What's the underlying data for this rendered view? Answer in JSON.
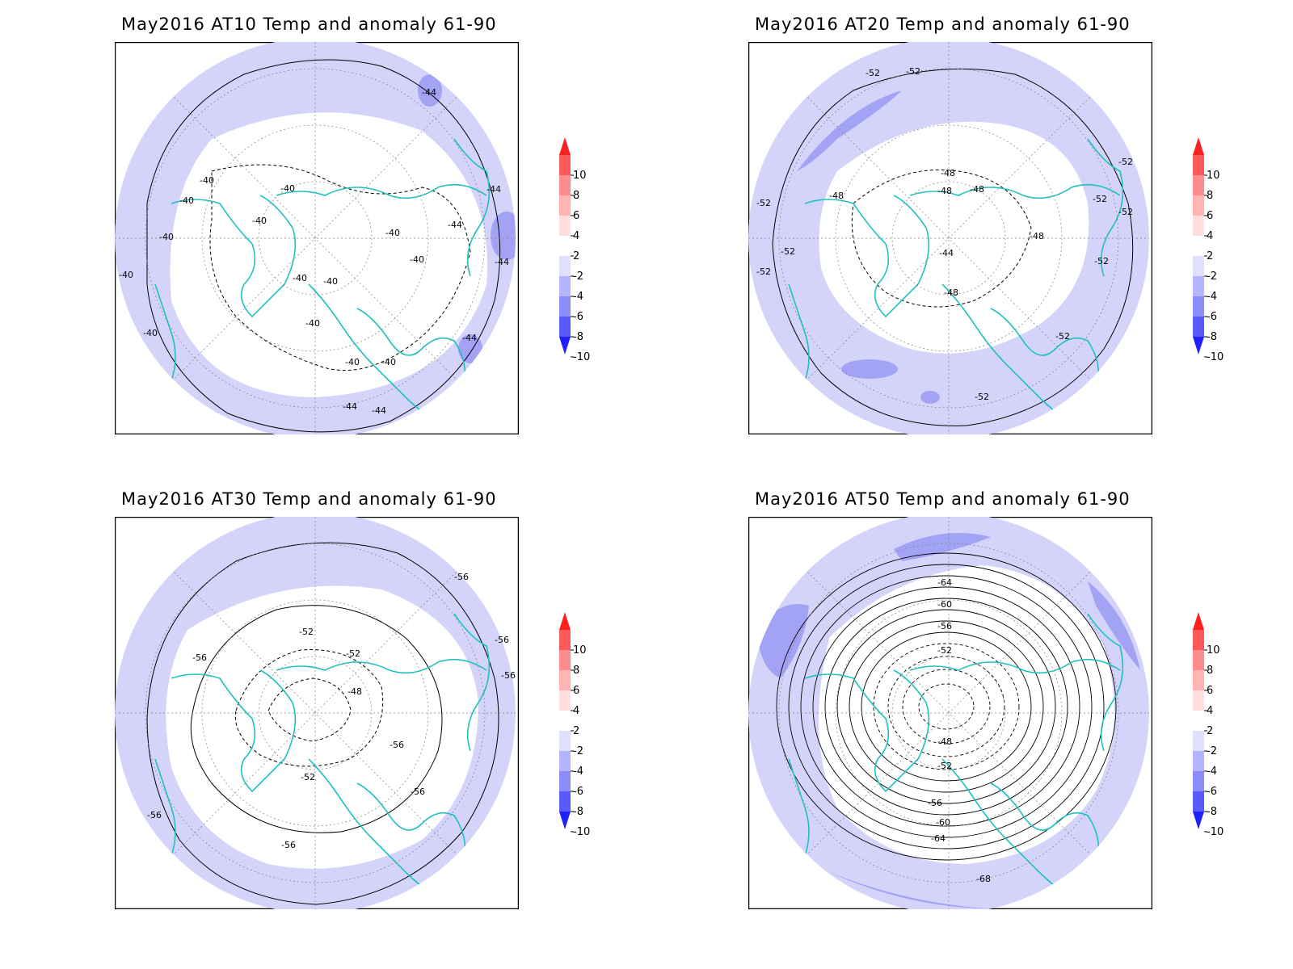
{
  "panels": [
    {
      "title": "May2016 AT10 Temp and anomaly 61-90",
      "contour_labels": [
        "-40",
        "-40",
        "-40",
        "-40",
        "-40",
        "-40",
        "-40",
        "-40",
        "-40",
        "-40",
        "-40",
        "-40",
        "-40",
        "-40",
        "-44",
        "-44",
        "-44",
        "-44",
        "-44",
        "-44",
        "-44"
      ]
    },
    {
      "title": "May2016 AT20 Temp and anomaly 61-90",
      "contour_labels": [
        "-52",
        "-52",
        "-52",
        "-52",
        "-52",
        "-52",
        "-52",
        "-52",
        "-52",
        "-52",
        "-52",
        "-48",
        "-48",
        "-48",
        "-48",
        "-48",
        "-48",
        "-44"
      ]
    },
    {
      "title": "May2016 AT30 Temp and anomaly 61-90",
      "contour_labels": [
        "-56",
        "-56",
        "-56",
        "-56",
        "-56",
        "-56",
        "-56",
        "-56",
        "-52",
        "-52",
        "-52",
        "-48"
      ]
    },
    {
      "title": "May2016 AT50 Temp and anomaly 61-90",
      "contour_labels": [
        "-64",
        "-60",
        "-56",
        "-52",
        "-48",
        "-52",
        "-56",
        "-60",
        "-64",
        "-68"
      ]
    }
  ],
  "colorbar": {
    "labels": [
      "10",
      "8",
      "6",
      "4",
      "2",
      "-2",
      "-4",
      "-6",
      "-8",
      "-10"
    ],
    "colors": [
      "#ff2020",
      "#ff5a5a",
      "#ff8c8c",
      "#ffb4b4",
      "#ffdede",
      "#ffffff",
      "#e0e0ff",
      "#b4b4ff",
      "#8c8cff",
      "#5a5aff",
      "#2020ff"
    ]
  },
  "fill_colors": {
    "anomaly_-2_-4": "#d4d4fb",
    "anomaly_-4_-6": "#a3a3f5",
    "coastline": "#20c0c0"
  }
}
